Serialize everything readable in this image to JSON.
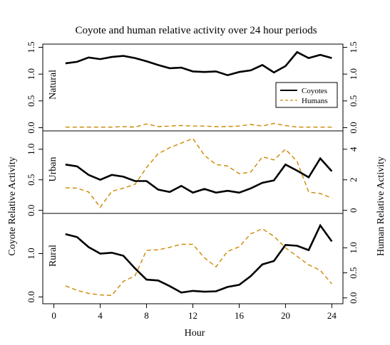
{
  "chart_data": {
    "type": "line",
    "title": "Coyote and human relative activity over 24 hour periods",
    "xlabel": "Hour",
    "ylabel_left": "Coyote Relative Activity",
    "ylabel_right": "Human Relative Activity",
    "x": [
      1,
      2,
      3,
      4,
      5,
      6,
      7,
      8,
      9,
      10,
      11,
      12,
      13,
      14,
      15,
      16,
      17,
      18,
      19,
      20,
      21,
      22,
      23,
      24
    ],
    "xlim": [
      0,
      24
    ],
    "xticks": [
      "0",
      "4",
      "8",
      "12",
      "16",
      "20",
      "24"
    ],
    "legend": {
      "placement": "right",
      "entries": [
        "Coyotes",
        "Humans"
      ]
    },
    "series_styles": {
      "Coyotes": {
        "color": "#000000",
        "line": "solid"
      },
      "Humans": {
        "color": "#cc8800",
        "line": "dashed"
      }
    },
    "panels": [
      {
        "label": "Natural",
        "left_ylim": [
          0,
          1.5
        ],
        "left_ticks": [
          "0.0",
          "0.5",
          "1.0",
          "1.5"
        ],
        "right_ylim": [
          0,
          1.5
        ],
        "right_ticks": [
          "0.0",
          "0.5",
          "1.0",
          "1.5"
        ],
        "series": [
          {
            "name": "Coyotes",
            "axis": "left",
            "values": [
              1.2,
              1.23,
              1.31,
              1.28,
              1.32,
              1.34,
              1.3,
              1.24,
              1.17,
              1.11,
              1.12,
              1.05,
              1.04,
              1.05,
              0.98,
              1.04,
              1.07,
              1.17,
              1.03,
              1.15,
              1.41,
              1.3,
              1.36,
              1.3
            ]
          },
          {
            "name": "Humans",
            "axis": "right",
            "values": [
              0.01,
              0.01,
              0.01,
              0.01,
              0.01,
              0.02,
              0.01,
              0.07,
              0.02,
              0.03,
              0.04,
              0.03,
              0.03,
              0.02,
              0.02,
              0.03,
              0.06,
              0.03,
              0.08,
              0.04,
              0.01,
              0.01,
              0.01,
              0.01
            ]
          }
        ]
      },
      {
        "label": "Urban",
        "left_ylim": [
          0,
          1.25
        ],
        "left_ticks": [
          "0.0",
          "0.5",
          "1.0"
        ],
        "right_ylim": [
          0,
          5
        ],
        "right_ticks": [
          "0",
          "2",
          "4"
        ],
        "series": [
          {
            "name": "Coyotes",
            "axis": "left",
            "values": [
              0.75,
              0.72,
              0.58,
              0.5,
              0.58,
              0.55,
              0.48,
              0.48,
              0.34,
              0.3,
              0.4,
              0.29,
              0.35,
              0.29,
              0.32,
              0.29,
              0.36,
              0.45,
              0.49,
              0.75,
              0.65,
              0.54,
              0.85,
              0.64
            ]
          },
          {
            "name": "Humans",
            "axis": "right",
            "values": [
              1.48,
              1.45,
              1.2,
              0.2,
              1.25,
              1.45,
              1.7,
              2.8,
              3.7,
              4.1,
              4.4,
              4.7,
              3.6,
              3.0,
              2.9,
              2.4,
              2.5,
              3.5,
              3.3,
              4.0,
              3.2,
              1.2,
              1.1,
              0.8
            ]
          }
        ]
      },
      {
        "label": "Rural",
        "left_ylim": [
          -0.08,
          1.85
        ],
        "left_ticks": [
          "0.0",
          "1.0"
        ],
        "right_ylim": [
          -0.05,
          1.62
        ],
        "right_ticks": [
          "0.0",
          "0.5",
          "1.0"
        ],
        "series": [
          {
            "name": "Coyotes",
            "axis": "left",
            "values": [
              1.45,
              1.38,
              1.15,
              1.0,
              1.02,
              0.95,
              0.66,
              0.4,
              0.38,
              0.25,
              0.1,
              0.14,
              0.12,
              0.13,
              0.23,
              0.28,
              0.48,
              0.75,
              0.83,
              1.2,
              1.18,
              1.08,
              1.65,
              1.28
            ]
          },
          {
            "name": "Humans",
            "axis": "right",
            "values": [
              0.24,
              0.15,
              0.09,
              0.06,
              0.05,
              0.33,
              0.44,
              0.95,
              0.96,
              1.01,
              1.07,
              1.07,
              0.8,
              0.62,
              0.93,
              1.02,
              1.28,
              1.38,
              1.23,
              1.0,
              0.83,
              0.66,
              0.55,
              0.28
            ]
          }
        ]
      }
    ]
  }
}
